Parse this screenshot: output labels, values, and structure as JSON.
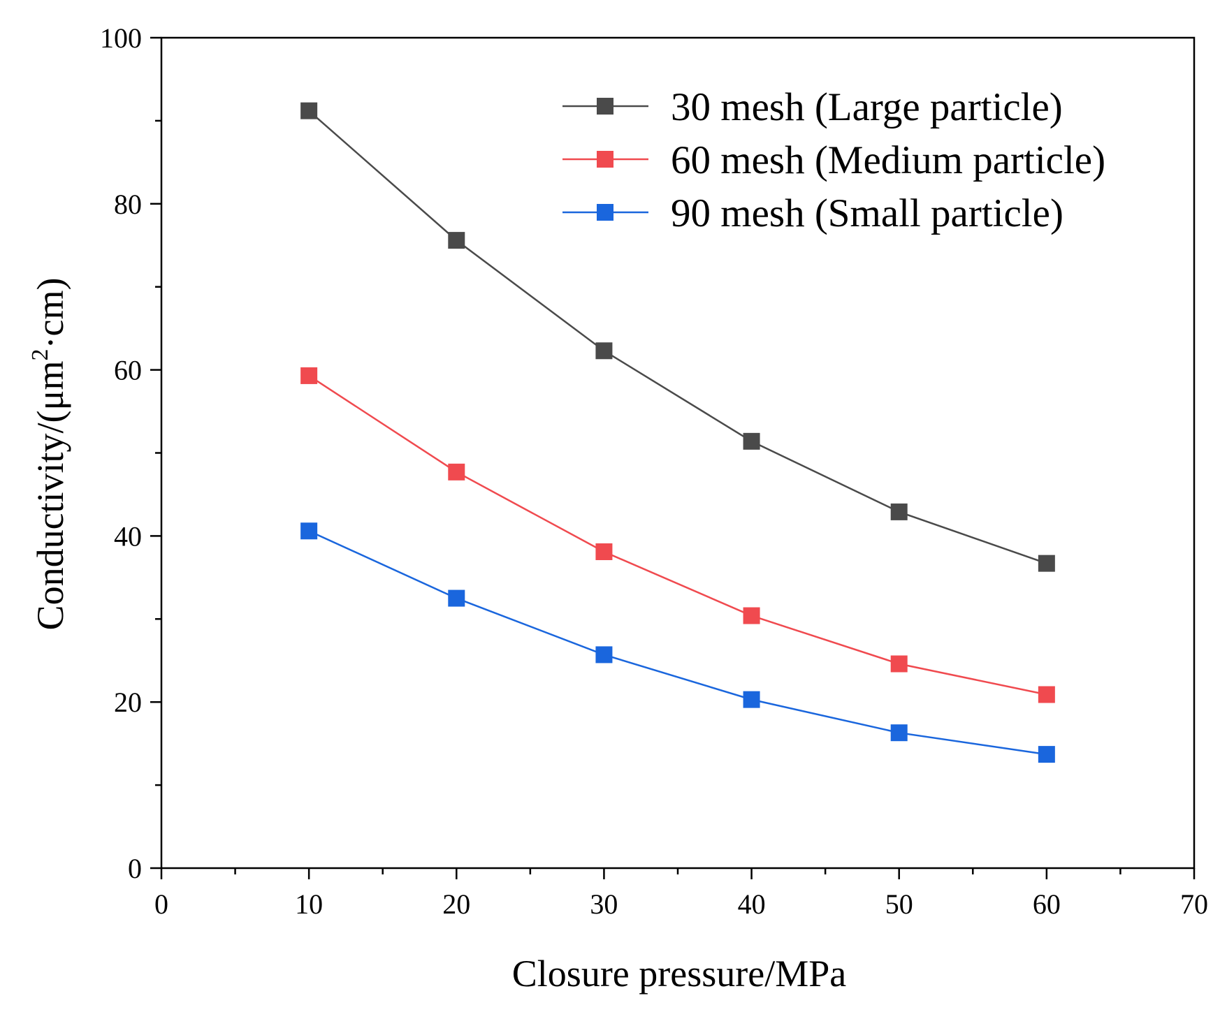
{
  "chart_data": {
    "type": "line",
    "xlabel": "Closure pressure/MPa",
    "ylabel_main": "Conductivity/(μm",
    "ylabel_sup": "2",
    "ylabel_tail": "·cm)",
    "xlim": [
      0,
      70
    ],
    "ylim": [
      0,
      100
    ],
    "x_ticks": [
      0,
      10,
      20,
      30,
      40,
      50,
      60,
      70
    ],
    "y_ticks": [
      0,
      20,
      40,
      60,
      80,
      100
    ],
    "x_minor_step": 5,
    "y_minor_step": 10,
    "grid": false,
    "legend_position": "top-right",
    "x": [
      10,
      20,
      30,
      40,
      50,
      60
    ],
    "series": [
      {
        "name": "30 mesh (Large particle)",
        "color": "#4a4a4a",
        "marker": "square",
        "values": [
          91.2,
          75.6,
          62.3,
          51.4,
          42.9,
          36.7
        ]
      },
      {
        "name": "60 mesh (Medium particle)",
        "color": "#f04a4f",
        "marker": "square",
        "values": [
          59.3,
          47.7,
          38.1,
          30.4,
          24.6,
          20.9
        ]
      },
      {
        "name": "90 mesh (Small particle)",
        "color": "#1a66dd",
        "marker": "square",
        "values": [
          40.6,
          32.5,
          25.7,
          20.3,
          16.3,
          13.7
        ]
      }
    ]
  }
}
